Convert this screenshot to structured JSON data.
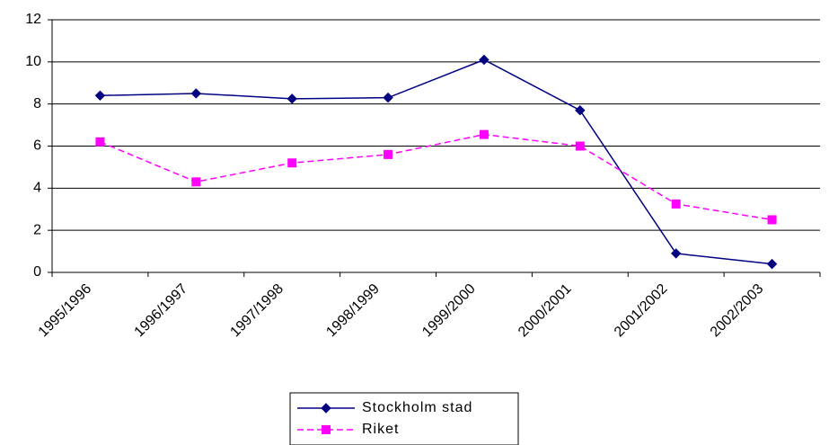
{
  "chart_data": {
    "type": "line",
    "categories": [
      "1995/1996",
      "1996/1997",
      "1997/1998",
      "1998/1999",
      "1999/2000",
      "2000/2001",
      "2001/2002",
      "2002/2003"
    ],
    "series": [
      {
        "name": "Stockholm stad",
        "color": "#000080",
        "marker": "diamond",
        "line_style": "solid",
        "values": [
          8.4,
          8.5,
          8.25,
          8.3,
          10.1,
          7.7,
          0.9,
          0.4
        ]
      },
      {
        "name": "Riket",
        "color": "#ff00ff",
        "marker": "square",
        "line_style": "dashed",
        "values": [
          6.2,
          4.3,
          5.2,
          5.6,
          6.55,
          6.0,
          3.25,
          2.5
        ]
      }
    ],
    "ylim": [
      0,
      12
    ],
    "yticks": [
      0,
      2,
      4,
      6,
      8,
      10,
      12
    ],
    "grid": true,
    "legend": "bottom"
  }
}
